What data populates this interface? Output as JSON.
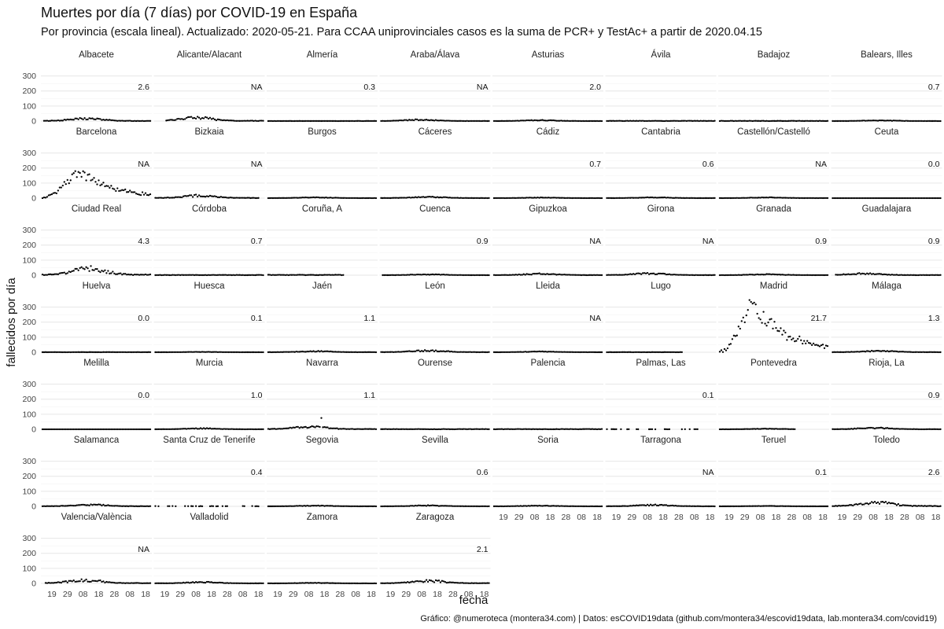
{
  "chart_data": {
    "type": "scatter",
    "title": "Muertes por día (7 días) por COVID-19 en España",
    "subtitle": "Por provincia (escala lineal). Actualizado: 2020-05-21. Para CCAA uniprovinciales casos es la suma de PCR+ y TestAc+ a partir de 2020.04.15",
    "xlabel": "fecha",
    "ylabel": "fallecidos por día",
    "caption": "Gráfico: @numeroteca (montera34.com) | Datos: esCOVID19data (github.com/montera34/escovid19data, lab.montera34.com/covid19)",
    "ylim": [
      0,
      350
    ],
    "y_ticks": [
      "0",
      "100",
      "200",
      "300"
    ],
    "x_range": [
      "2020-03-13",
      "2020-05-21"
    ],
    "x_ticks": [
      {
        "date": "2020-03-19",
        "label": "19"
      },
      {
        "date": "2020-03-29",
        "label": "29"
      },
      {
        "date": "2020-04-08",
        "label": "08"
      },
      {
        "date": "2020-04-18",
        "label": "18"
      },
      {
        "date": "2020-04-28",
        "label": "28"
      },
      {
        "date": "2020-05-08",
        "label": "08"
      },
      {
        "date": "2020-05-18",
        "label": "18"
      }
    ],
    "grid": true,
    "legend": "none",
    "colors": {
      "points": "#000000",
      "grid": "#e6e6e6"
    },
    "panels": [
      {
        "name": "Albacete",
        "label": "2.6",
        "start": "2020-03-14",
        "end": "2020-05-21",
        "profile": "small",
        "peak": 15,
        "peak_day": 28
      },
      {
        "name": "Alicante/Alacant",
        "label": "NA",
        "start": "2020-03-20",
        "end": "2020-05-21",
        "profile": "small",
        "peak": 20,
        "peak_day": 26
      },
      {
        "name": "Almería",
        "label": "0.3",
        "start": "2020-03-13",
        "end": "2020-05-21",
        "profile": "flat",
        "peak": 1,
        "peak_day": 30
      },
      {
        "name": "Araba/Álava",
        "label": "NA",
        "start": "2020-03-13",
        "end": "2020-05-21",
        "profile": "small",
        "peak": 8,
        "peak_day": 25
      },
      {
        "name": "Asturias",
        "label": "2.0",
        "start": "2020-03-13",
        "end": "2020-05-21",
        "profile": "small",
        "peak": 5,
        "peak_day": 30
      },
      {
        "name": "Ávila",
        "label": "",
        "start": "2020-03-13",
        "end": "2020-05-21",
        "profile": "flat",
        "peak": 2,
        "peak_day": 30
      },
      {
        "name": "Badajoz",
        "label": "",
        "start": "2020-03-13",
        "end": "2020-05-21",
        "profile": "flat",
        "peak": 2,
        "peak_day": 30
      },
      {
        "name": "Balears, Illes",
        "label": "0.7",
        "start": "2020-03-13",
        "end": "2020-05-21",
        "profile": "small",
        "peak": 4,
        "peak_day": 30
      },
      {
        "name": "Barcelona",
        "label": "NA",
        "start": "2020-03-13",
        "end": "2020-05-21",
        "profile": "bigwave",
        "peak": 190,
        "peak_day": 23
      },
      {
        "name": "Bizkaia",
        "label": "NA",
        "start": "2020-03-13",
        "end": "2020-05-18",
        "profile": "small",
        "peak": 15,
        "peak_day": 28
      },
      {
        "name": "Burgos",
        "label": "",
        "start": "2020-03-13",
        "end": "2020-05-21",
        "profile": "small",
        "peak": 4,
        "peak_day": 30
      },
      {
        "name": "Cáceres",
        "label": "",
        "start": "2020-03-13",
        "end": "2020-05-21",
        "profile": "small",
        "peak": 7,
        "peak_day": 30
      },
      {
        "name": "Cádiz",
        "label": "0.7",
        "start": "2020-03-13",
        "end": "2020-05-21",
        "profile": "small",
        "peak": 3,
        "peak_day": 30
      },
      {
        "name": "Cantabria",
        "label": "0.6",
        "start": "2020-03-13",
        "end": "2020-05-21",
        "profile": "small",
        "peak": 4,
        "peak_day": 30
      },
      {
        "name": "Castellón/Castelló",
        "label": "NA",
        "start": "2020-03-13",
        "end": "2020-05-21",
        "profile": "small",
        "peak": 4,
        "peak_day": 30
      },
      {
        "name": "Ceuta",
        "label": "0.0",
        "start": "2020-03-13",
        "end": "2020-05-21",
        "profile": "flat",
        "peak": 0,
        "peak_day": 30
      },
      {
        "name": "Ciudad Real",
        "label": "4.3",
        "start": "2020-03-13",
        "end": "2020-05-21",
        "profile": "medium",
        "peak": 40,
        "peak_day": 30
      },
      {
        "name": "Córdoba",
        "label": "0.7",
        "start": "2020-03-13",
        "end": "2020-05-21",
        "profile": "flat",
        "peak": 2,
        "peak_day": 30
      },
      {
        "name": "Coruña, A",
        "label": "",
        "start": "2020-03-13",
        "end": "2020-04-30",
        "profile": "flat",
        "peak": 3,
        "peak_day": 30
      },
      {
        "name": "Cuenca",
        "label": "0.9",
        "start": "2020-03-14",
        "end": "2020-05-21",
        "profile": "small",
        "peak": 5,
        "peak_day": 30
      },
      {
        "name": "Gipuzkoa",
        "label": "NA",
        "start": "2020-03-13",
        "end": "2020-05-21",
        "profile": "small",
        "peak": 8,
        "peak_day": 30
      },
      {
        "name": "Girona",
        "label": "NA",
        "start": "2020-03-13",
        "end": "2020-05-21",
        "profile": "small",
        "peak": 10,
        "peak_day": 27
      },
      {
        "name": "Granada",
        "label": "0.9",
        "start": "2020-03-13",
        "end": "2020-05-21",
        "profile": "small",
        "peak": 5,
        "peak_day": 30
      },
      {
        "name": "Guadalajara",
        "label": "0.9",
        "start": "2020-03-15",
        "end": "2020-05-21",
        "profile": "small",
        "peak": 10,
        "peak_day": 20
      },
      {
        "name": "Huelva",
        "label": "0.0",
        "start": "2020-03-13",
        "end": "2020-05-21",
        "profile": "flat",
        "peak": 1,
        "peak_day": 30
      },
      {
        "name": "Huesca",
        "label": "0.1",
        "start": "2020-03-13",
        "end": "2020-05-21",
        "profile": "small",
        "peak": 2,
        "peak_day": 30
      },
      {
        "name": "Jaén",
        "label": "1.1",
        "start": "2020-03-13",
        "end": "2020-05-21",
        "profile": "small",
        "peak": 6,
        "peak_day": 30
      },
      {
        "name": "León",
        "label": "",
        "start": "2020-03-13",
        "end": "2020-05-21",
        "profile": "small",
        "peak": 10,
        "peak_day": 30
      },
      {
        "name": "Lleida",
        "label": "NA",
        "start": "2020-03-13",
        "end": "2020-05-21",
        "profile": "small",
        "peak": 4,
        "peak_day": 30
      },
      {
        "name": "Lugo",
        "label": "",
        "start": "2020-03-13",
        "end": "2020-04-30",
        "profile": "flat",
        "peak": 1,
        "peak_day": 30
      },
      {
        "name": "Madrid",
        "label": "21.7",
        "start": "2020-03-13",
        "end": "2020-05-21",
        "profile": "huge",
        "peak": 340,
        "peak_day": 19
      },
      {
        "name": "Málaga",
        "label": "1.3",
        "start": "2020-03-13",
        "end": "2020-05-21",
        "profile": "small",
        "peak": 8,
        "peak_day": 30
      },
      {
        "name": "Melilla",
        "label": "0.0",
        "start": "2020-03-13",
        "end": "2020-05-21",
        "profile": "flat",
        "peak": 0,
        "peak_day": 30
      },
      {
        "name": "Murcia",
        "label": "1.0",
        "start": "2020-03-13",
        "end": "2020-05-21",
        "profile": "small",
        "peak": 5,
        "peak_day": 30
      },
      {
        "name": "Navarra",
        "label": "1.1",
        "start": "2020-03-13",
        "end": "2020-05-21",
        "profile": "small",
        "peak": 15,
        "peak_day": 27,
        "outlier": 75,
        "outlier_day": 34
      },
      {
        "name": "Ourense",
        "label": "",
        "start": "2020-03-13",
        "end": "2020-05-21",
        "profile": "flat",
        "peak": 2,
        "peak_day": 30
      },
      {
        "name": "Palencia",
        "label": "",
        "start": "2020-03-13",
        "end": "2020-05-21",
        "profile": "flat",
        "peak": 2,
        "peak_day": 30
      },
      {
        "name": "Palmas, Las",
        "label": "0.1",
        "start": "2020-03-13",
        "end": "2020-05-21",
        "profile": "sparse",
        "peak": 1,
        "peak_day": 30
      },
      {
        "name": "Pontevedra",
        "label": "",
        "start": "2020-03-13",
        "end": "2020-04-30",
        "profile": "small",
        "peak": 3,
        "peak_day": 30
      },
      {
        "name": "Rioja, La",
        "label": "0.9",
        "start": "2020-03-13",
        "end": "2020-05-21",
        "profile": "small",
        "peak": 8,
        "peak_day": 27
      },
      {
        "name": "Salamanca",
        "label": "",
        "start": "2020-03-13",
        "end": "2020-05-21",
        "profile": "small",
        "peak": 10,
        "peak_day": 30
      },
      {
        "name": "Santa Cruz de Tenerife",
        "label": "0.4",
        "start": "2020-03-13",
        "end": "2020-05-21",
        "profile": "sparse",
        "peak": 2,
        "peak_day": 30
      },
      {
        "name": "Segovia",
        "label": "",
        "start": "2020-03-13",
        "end": "2020-05-21",
        "profile": "small",
        "peak": 4,
        "peak_day": 30
      },
      {
        "name": "Sevilla",
        "label": "0.6",
        "start": "2020-03-13",
        "end": "2020-05-21",
        "profile": "small",
        "peak": 5,
        "peak_day": 30
      },
      {
        "name": "Soria",
        "label": "",
        "start": "2020-03-13",
        "end": "2020-05-21",
        "profile": "small",
        "peak": 4,
        "peak_day": 30
      },
      {
        "name": "Tarragona",
        "label": "NA",
        "start": "2020-03-13",
        "end": "2020-05-21",
        "profile": "small",
        "peak": 8,
        "peak_day": 30
      },
      {
        "name": "Teruel",
        "label": "0.1",
        "start": "2020-03-13",
        "end": "2020-05-21",
        "profile": "small",
        "peak": 2,
        "peak_day": 30
      },
      {
        "name": "Toledo",
        "label": "2.6",
        "start": "2020-03-13",
        "end": "2020-05-21",
        "profile": "medium",
        "peak": 25,
        "peak_day": 28
      },
      {
        "name": "Valencia/València",
        "label": "NA",
        "start": "2020-03-15",
        "end": "2020-05-21",
        "profile": "small",
        "peak": 20,
        "peak_day": 27
      },
      {
        "name": "Valladolid",
        "label": "",
        "start": "2020-03-13",
        "end": "2020-05-21",
        "profile": "small",
        "peak": 7,
        "peak_day": 30
      },
      {
        "name": "Zamora",
        "label": "",
        "start": "2020-03-13",
        "end": "2020-05-21",
        "profile": "small",
        "peak": 3,
        "peak_day": 30
      },
      {
        "name": "Zaragoza",
        "label": "2.1",
        "start": "2020-03-13",
        "end": "2020-05-21",
        "profile": "small",
        "peak": 15,
        "peak_day": 30
      }
    ]
  }
}
